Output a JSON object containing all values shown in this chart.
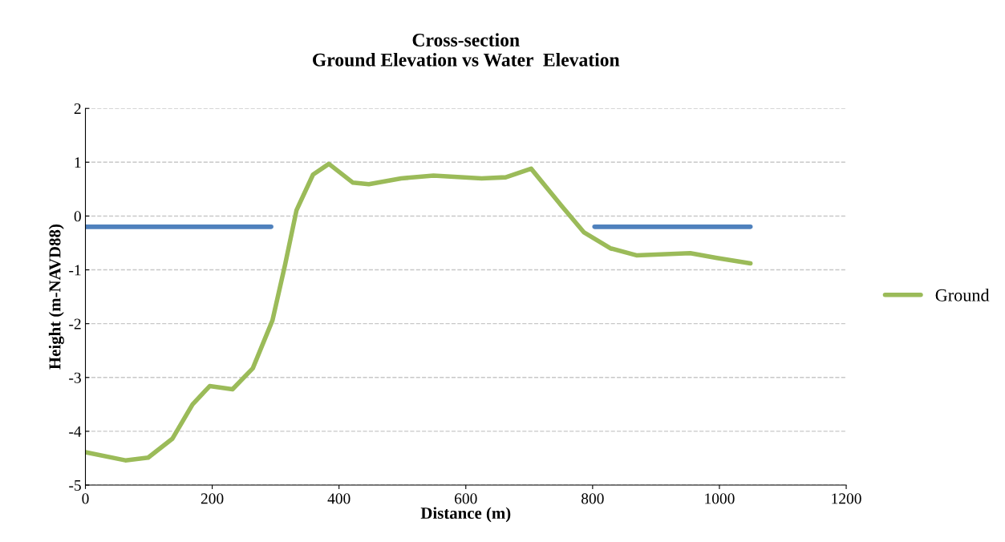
{
  "chart_data": {
    "type": "line",
    "title": "Cross-section\nGround Elevation vs Water  Elevation",
    "xlabel": "Distance (m)",
    "ylabel": "Height (m-NAVD88)",
    "series": [
      {
        "name": "Ground",
        "color": "#9bbb59",
        "x": [
          0,
          63,
          99,
          137,
          169,
          196,
          232,
          264,
          295,
          315,
          333,
          359,
          384,
          422,
          447,
          498,
          549,
          625,
          663,
          703,
          751,
          786,
          828,
          869,
          954,
          996,
          1049
        ],
        "values": [
          -4.39,
          -4.54,
          -4.49,
          -4.14,
          -3.5,
          -3.16,
          -3.22,
          -2.83,
          -1.94,
          -0.9,
          0.11,
          0.77,
          0.97,
          0.62,
          0.59,
          0.7,
          0.75,
          0.7,
          0.72,
          0.88,
          0.19,
          -0.3,
          -0.6,
          -0.73,
          -0.69,
          -0.78,
          -0.88
        ]
      },
      {
        "color": "#4f81bd",
        "x": [
          0,
          293
        ],
        "values": [
          -0.2,
          -0.2
        ]
      },
      {
        "color": "#4f81bd",
        "x": [
          803,
          1049
        ],
        "values": [
          -0.2,
          -0.2
        ]
      }
    ],
    "xlim": [
      0,
      1200
    ],
    "xticks": [
      0,
      200,
      400,
      600,
      800,
      1000,
      1200
    ],
    "ylim": [
      -5,
      2
    ],
    "yticks": [
      -5,
      -4,
      -3,
      -2,
      -1,
      0,
      1,
      2
    ],
    "grid": "y",
    "legend": "right",
    "marker": "none",
    "line_style": "solid"
  }
}
